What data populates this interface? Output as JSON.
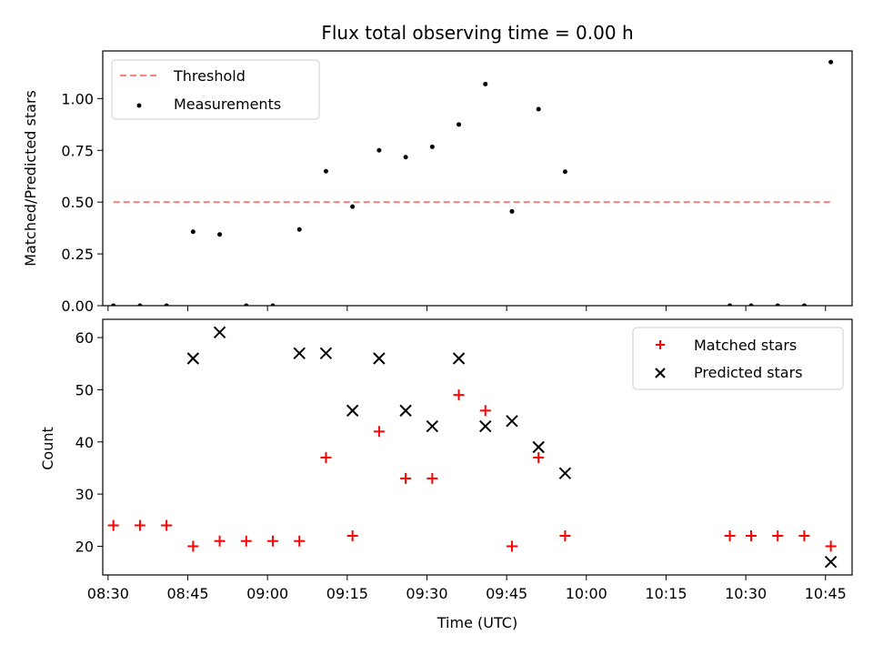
{
  "chart_data": [
    {
      "type": "scatter",
      "title": "Flux total observing time = 0.00 h",
      "xlabel": "",
      "ylabel": "Matched/Predicted stars",
      "ylim": [
        0,
        1.23
      ],
      "yticks": [
        "0.00",
        "0.25",
        "0.50",
        "0.75",
        "1.00"
      ],
      "legend_position": "top-left",
      "threshold": {
        "name": "Threshold",
        "value": 0.5,
        "x_start": "08:31",
        "x_end": "10:46",
        "color": "#ff7f7f",
        "style": "dashed"
      },
      "series": [
        {
          "name": "Measurements",
          "color": "#000000",
          "points": [
            {
              "x": "08:31",
              "y": 0.0
            },
            {
              "x": "08:36",
              "y": 0.0
            },
            {
              "x": "08:41",
              "y": 0.0
            },
            {
              "x": "08:46",
              "y": 0.357
            },
            {
              "x": "08:51",
              "y": 0.344
            },
            {
              "x": "08:56",
              "y": 0.0
            },
            {
              "x": "09:01",
              "y": 0.0
            },
            {
              "x": "09:06",
              "y": 0.368
            },
            {
              "x": "09:11",
              "y": 0.649
            },
            {
              "x": "09:16",
              "y": 0.478
            },
            {
              "x": "09:21",
              "y": 0.75
            },
            {
              "x": "09:26",
              "y": 0.717
            },
            {
              "x": "09:31",
              "y": 0.767
            },
            {
              "x": "09:36",
              "y": 0.875
            },
            {
              "x": "09:41",
              "y": 1.07
            },
            {
              "x": "09:46",
              "y": 0.455
            },
            {
              "x": "09:51",
              "y": 0.949
            },
            {
              "x": "09:56",
              "y": 0.647
            },
            {
              "x": "10:27",
              "y": 0.0
            },
            {
              "x": "10:31",
              "y": 0.0
            },
            {
              "x": "10:36",
              "y": 0.0
            },
            {
              "x": "10:41",
              "y": 0.0
            },
            {
              "x": "10:46",
              "y": 1.176
            }
          ]
        }
      ]
    },
    {
      "type": "scatter",
      "title": "",
      "xlabel": "Time (UTC)",
      "ylabel": "Count",
      "ylim": [
        14.5,
        63.5
      ],
      "yticks": [
        "20",
        "30",
        "40",
        "50",
        "60"
      ],
      "xlim": [
        "08:29",
        "10:50"
      ],
      "xticks": [
        "08:30",
        "08:45",
        "09:00",
        "09:15",
        "09:30",
        "09:45",
        "10:00",
        "10:15",
        "10:30",
        "10:45"
      ],
      "legend_position": "top-right",
      "series": [
        {
          "name": "Matched stars",
          "color": "#ff0000",
          "marker": "plus",
          "points": [
            {
              "x": "08:31",
              "y": 24
            },
            {
              "x": "08:36",
              "y": 24
            },
            {
              "x": "08:41",
              "y": 24
            },
            {
              "x": "08:46",
              "y": 20
            },
            {
              "x": "08:51",
              "y": 21
            },
            {
              "x": "08:56",
              "y": 21
            },
            {
              "x": "09:01",
              "y": 21
            },
            {
              "x": "09:06",
              "y": 21
            },
            {
              "x": "09:11",
              "y": 37
            },
            {
              "x": "09:16",
              "y": 22
            },
            {
              "x": "09:21",
              "y": 42
            },
            {
              "x": "09:26",
              "y": 33
            },
            {
              "x": "09:31",
              "y": 33
            },
            {
              "x": "09:36",
              "y": 49
            },
            {
              "x": "09:41",
              "y": 46
            },
            {
              "x": "09:46",
              "y": 20
            },
            {
              "x": "09:51",
              "y": 37
            },
            {
              "x": "09:56",
              "y": 22
            },
            {
              "x": "10:27",
              "y": 22
            },
            {
              "x": "10:31",
              "y": 22
            },
            {
              "x": "10:36",
              "y": 22
            },
            {
              "x": "10:41",
              "y": 22
            },
            {
              "x": "10:46",
              "y": 20
            }
          ]
        },
        {
          "name": "Predicted stars",
          "color": "#000000",
          "marker": "x",
          "points": [
            {
              "x": "08:46",
              "y": 56
            },
            {
              "x": "08:51",
              "y": 61
            },
            {
              "x": "09:06",
              "y": 57
            },
            {
              "x": "09:11",
              "y": 57
            },
            {
              "x": "09:16",
              "y": 46
            },
            {
              "x": "09:21",
              "y": 56
            },
            {
              "x": "09:26",
              "y": 46
            },
            {
              "x": "09:31",
              "y": 43
            },
            {
              "x": "09:36",
              "y": 56
            },
            {
              "x": "09:41",
              "y": 43
            },
            {
              "x": "09:46",
              "y": 44
            },
            {
              "x": "09:51",
              "y": 39
            },
            {
              "x": "09:56",
              "y": 34
            },
            {
              "x": "10:46",
              "y": 17
            }
          ]
        }
      ]
    }
  ]
}
